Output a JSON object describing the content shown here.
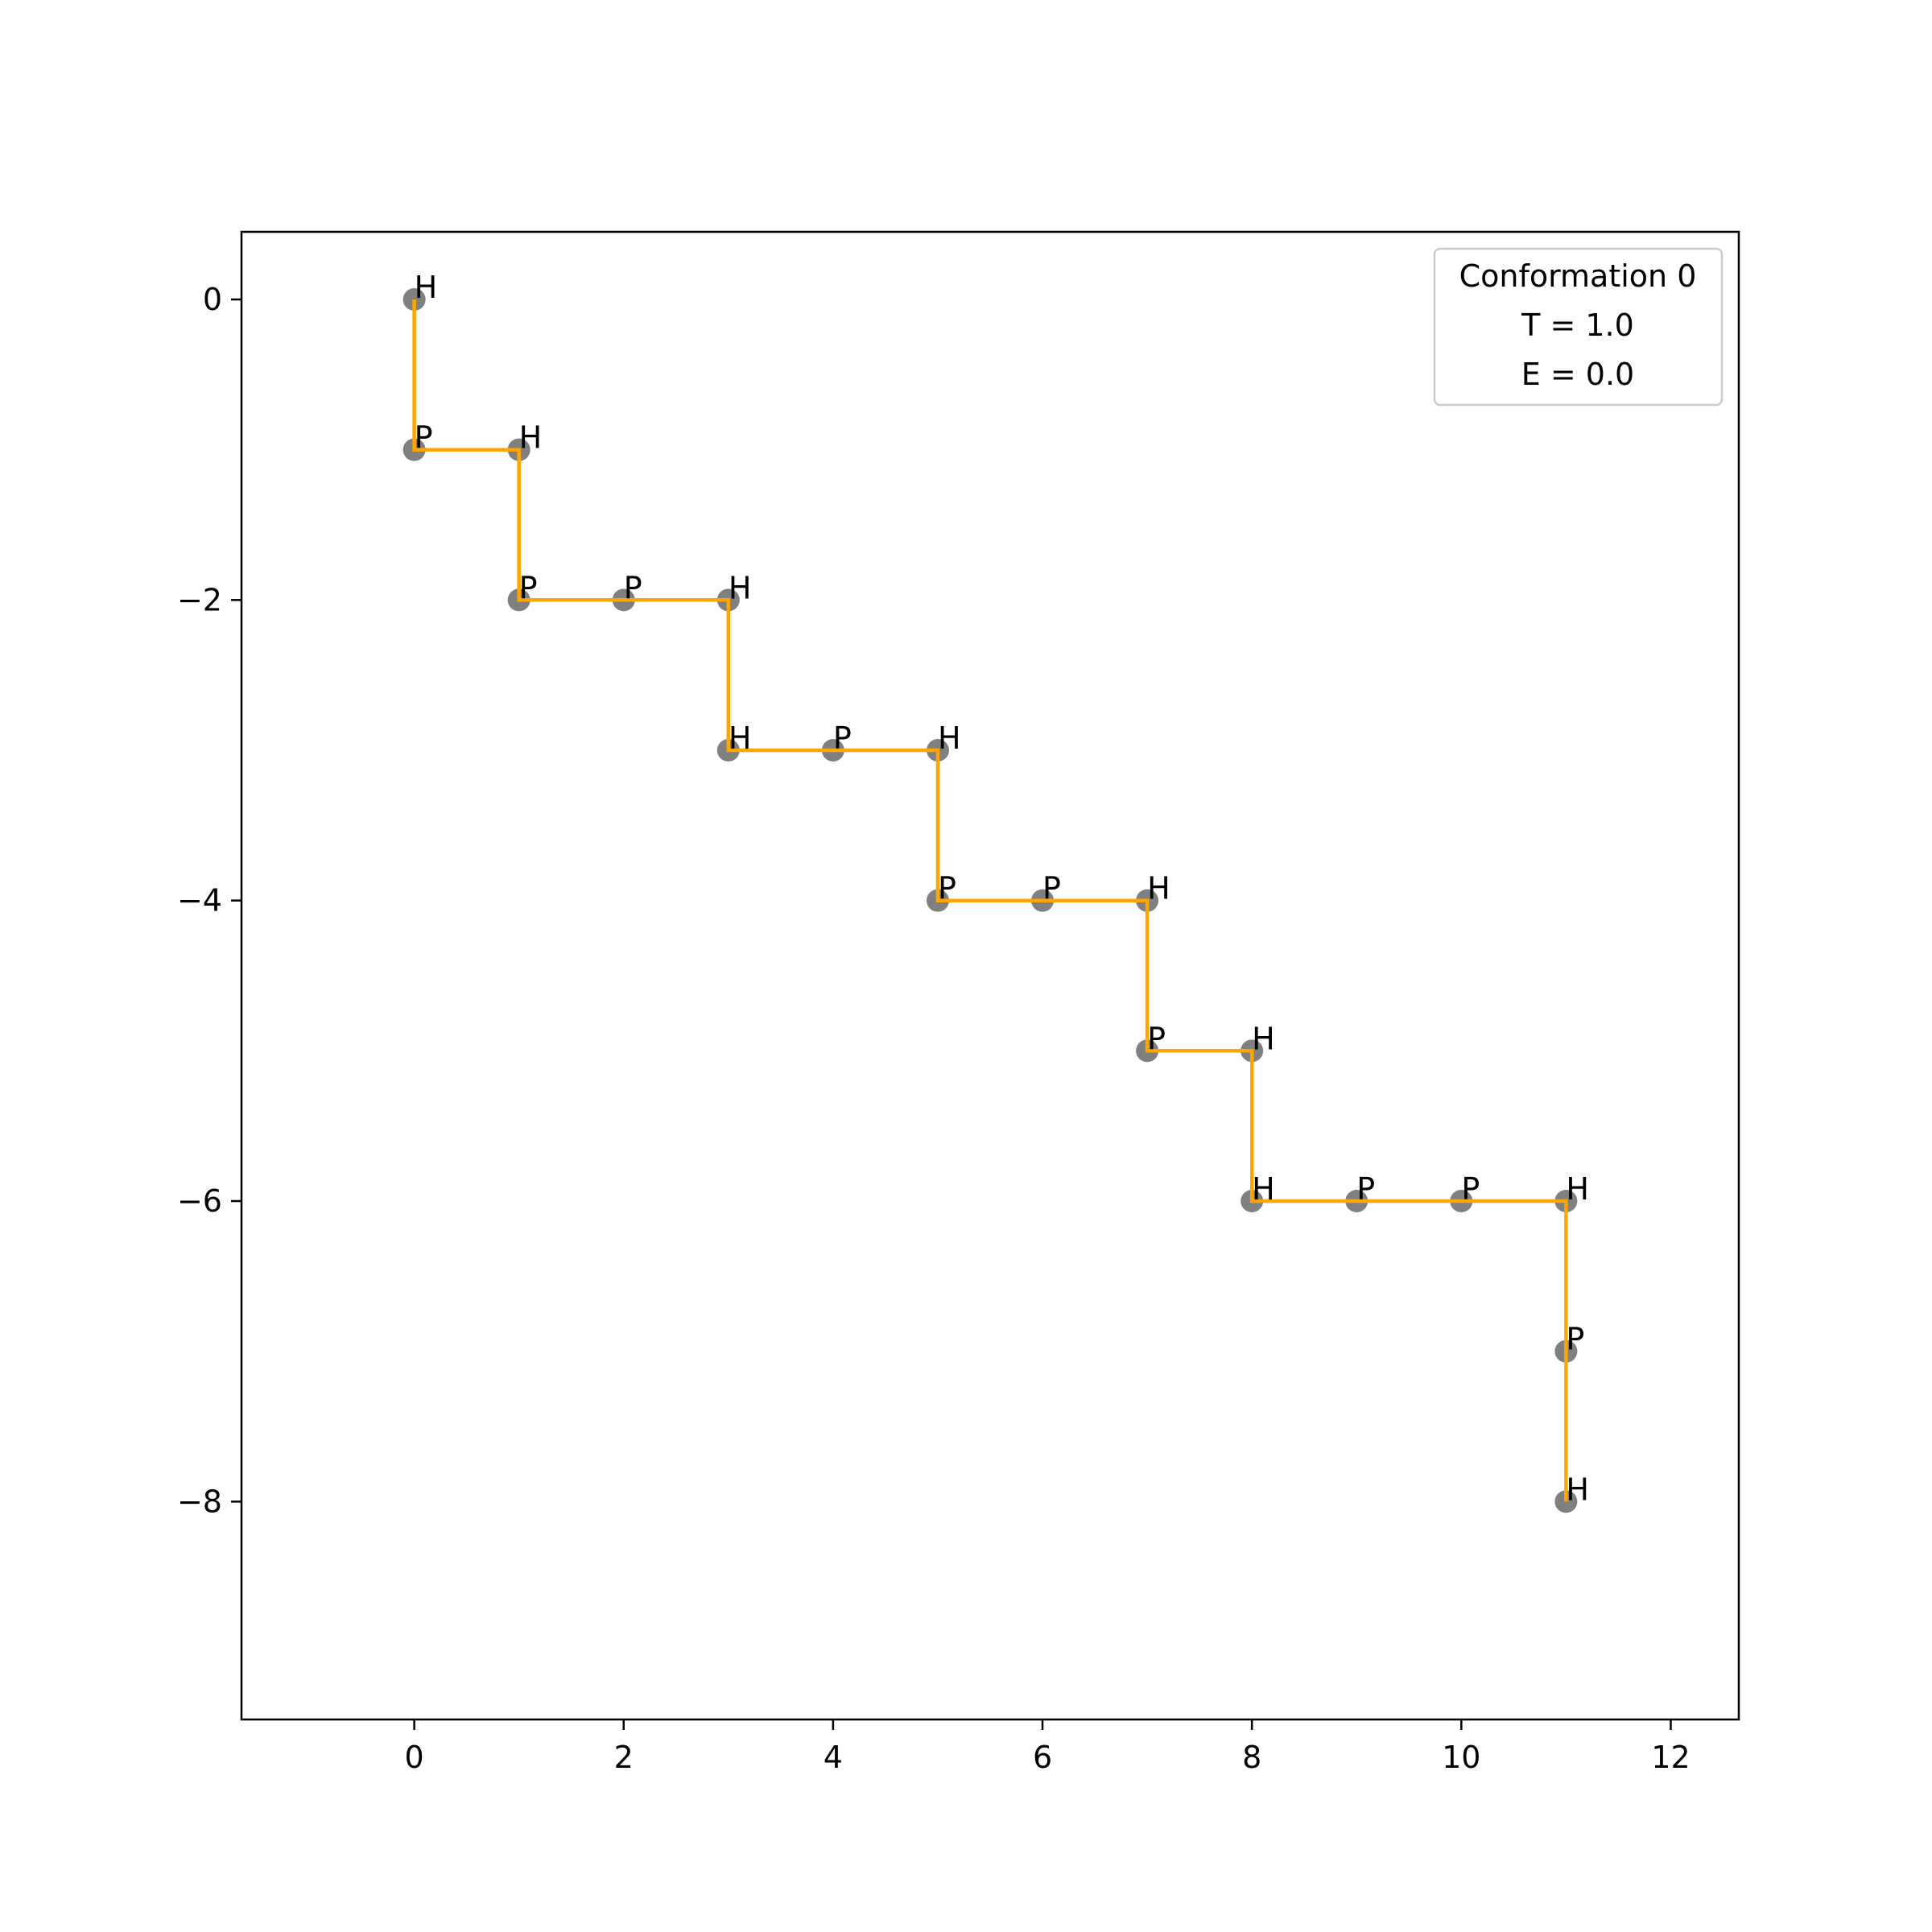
{
  "chart_data": {
    "type": "line",
    "title": "",
    "xlabel": "",
    "ylabel": "",
    "xlim": [
      -1.65,
      12.65
    ],
    "ylim": [
      -9.45,
      0.45
    ],
    "xticks": [
      0,
      2,
      4,
      6,
      8,
      10,
      12
    ],
    "yticks": [
      0,
      -2,
      -4,
      -6,
      -8
    ],
    "xtick_labels": [
      "0",
      "2",
      "4",
      "6",
      "8",
      "10",
      "12"
    ],
    "ytick_labels": [
      "0",
      "−2",
      "−4",
      "−6",
      "−8"
    ],
    "grid": false,
    "series": [
      {
        "x": [
          0,
          0,
          1,
          1,
          2,
          3,
          3,
          4,
          5,
          5,
          6,
          7,
          7,
          8,
          8,
          9,
          10,
          11,
          11,
          11
        ],
        "y": [
          0,
          -1,
          -1,
          -2,
          -2,
          -2,
          -3,
          -3,
          -3,
          -4,
          -4,
          -4,
          -5,
          -5,
          -6,
          -6,
          -6,
          -6,
          -7,
          -8
        ],
        "labels": [
          "H",
          "P",
          "H",
          "P",
          "P",
          "H",
          "H",
          "P",
          "H",
          "P",
          "P",
          "H",
          "P",
          "H",
          "H",
          "P",
          "P",
          "H",
          "P",
          "H"
        ]
      }
    ],
    "line_color": "#ffa500",
    "marker_color": "#808080",
    "legend": {
      "placement": "top-right",
      "lines": [
        "Conformation 0",
        "T = 1.0",
        "E = 0.0"
      ]
    }
  }
}
